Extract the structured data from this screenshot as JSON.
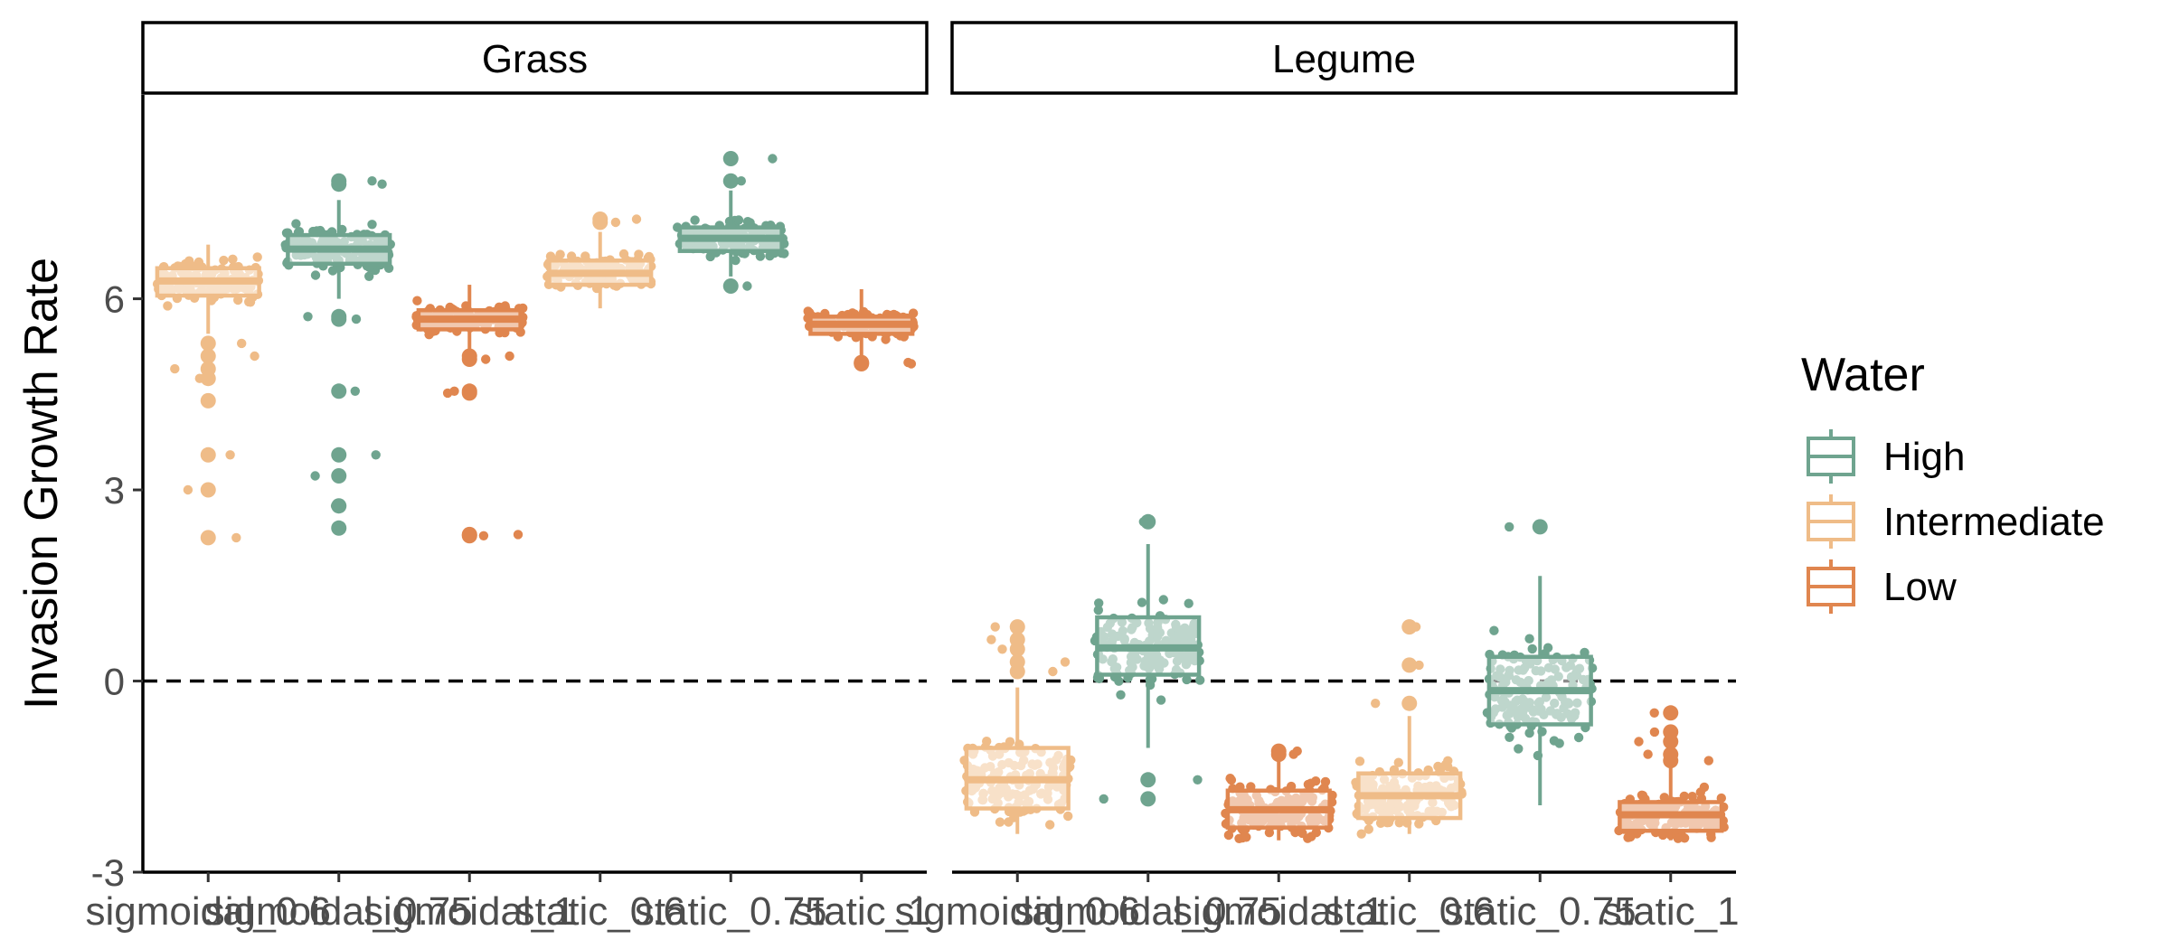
{
  "chart_data": {
    "type": "box",
    "ylabel": "Invasion Growth Rate",
    "xlabel": "",
    "ylim": [
      -3,
      9.2
    ],
    "y_ticks": [
      -3,
      0,
      3,
      6
    ],
    "reference_line": {
      "y": 0,
      "style": "dashed"
    },
    "categories": [
      "sigmoidal_0.6",
      "sigmoidal_0.75",
      "sigmoidal_1",
      "static_0.6",
      "static_0.75",
      "static_1"
    ],
    "legend": {
      "title": "Water",
      "position": "right",
      "entries": [
        {
          "label": "High",
          "color": "#6fa48f"
        },
        {
          "label": "Intermediate",
          "color": "#efbc88"
        },
        {
          "label": "Low",
          "color": "#e0864f"
        }
      ]
    },
    "panels": [
      {
        "strip_label": "Grass",
        "boxes": [
          {
            "category": "sigmoidal_1",
            "water": "Low",
            "q1": 5.52,
            "median": 5.68,
            "q3": 5.82,
            "whisker_low": 5.15,
            "whisker_high": 6.22,
            "outliers": [
              5.1,
              5.05,
              4.55,
              4.52,
              2.3,
              2.28
            ]
          },
          {
            "category": "sigmoidal_0.6",
            "water": "Intermediate",
            "q1": 6.05,
            "median": 6.28,
            "q3": 6.48,
            "whisker_low": 5.45,
            "whisker_high": 6.85,
            "outliers": [
              5.3,
              5.1,
              4.9,
              4.75,
              4.4,
              3.55,
              3.0,
              2.25
            ]
          },
          {
            "category": "sigmoidal_0.75",
            "water": "High",
            "q1": 6.55,
            "median": 6.78,
            "q3": 7.0,
            "whisker_low": 6.0,
            "whisker_high": 7.55,
            "outliers": [
              7.8,
              7.85,
              5.72,
              5.68,
              4.55,
              3.55,
              3.22,
              2.75,
              2.4
            ]
          },
          {
            "category": "static_1",
            "water": "Low",
            "q1": 5.45,
            "median": 5.6,
            "q3": 5.72,
            "whisker_low": 5.05,
            "whisker_high": 6.15,
            "outliers": [
              5.0,
              4.98
            ]
          },
          {
            "category": "static_0.6",
            "water": "Intermediate",
            "q1": 6.22,
            "median": 6.4,
            "q3": 6.6,
            "whisker_low": 5.85,
            "whisker_high": 7.05,
            "outliers": [
              7.25,
              7.2
            ]
          },
          {
            "category": "static_0.75",
            "water": "High",
            "q1": 6.75,
            "median": 6.95,
            "q3": 7.12,
            "whisker_low": 6.35,
            "whisker_high": 7.7,
            "outliers": [
              7.85,
              8.2,
              6.2
            ]
          }
        ]
      },
      {
        "strip_label": "Legume",
        "boxes": [
          {
            "category": "sigmoidal_1",
            "water": "Low",
            "q1": -2.3,
            "median": -2.02,
            "q3": -1.72,
            "whisker_low": -2.5,
            "whisker_high": -1.2,
            "outliers": [
              -1.1,
              -1.15
            ]
          },
          {
            "category": "sigmoidal_0.6",
            "water": "Intermediate",
            "q1": -2.0,
            "median": -1.55,
            "q3": -1.05,
            "whisker_low": -2.4,
            "whisker_high": -0.1,
            "outliers": [
              0.85,
              0.65,
              0.5,
              0.3,
              0.15
            ]
          },
          {
            "category": "sigmoidal_0.75",
            "water": "High",
            "q1": 0.1,
            "median": 0.52,
            "q3": 1.0,
            "whisker_low": -1.05,
            "whisker_high": 2.15,
            "outliers": [
              2.5,
              -1.55,
              -1.85
            ]
          },
          {
            "category": "static_1",
            "water": "Low",
            "q1": -2.35,
            "median": -2.1,
            "q3": -1.9,
            "whisker_low": -2.5,
            "whisker_high": -1.3,
            "outliers": [
              -0.5,
              -0.8,
              -0.95,
              -1.15,
              -1.25
            ]
          },
          {
            "category": "static_0.6",
            "water": "Intermediate",
            "q1": -2.15,
            "median": -1.8,
            "q3": -1.45,
            "whisker_low": -2.4,
            "whisker_high": -0.55,
            "outliers": [
              0.85,
              0.25,
              -0.35
            ]
          },
          {
            "category": "static_0.75",
            "water": "High",
            "q1": -0.68,
            "median": -0.15,
            "q3": 0.38,
            "whisker_low": -1.95,
            "whisker_high": 1.65,
            "outliers": [
              2.42
            ]
          }
        ]
      }
    ]
  }
}
